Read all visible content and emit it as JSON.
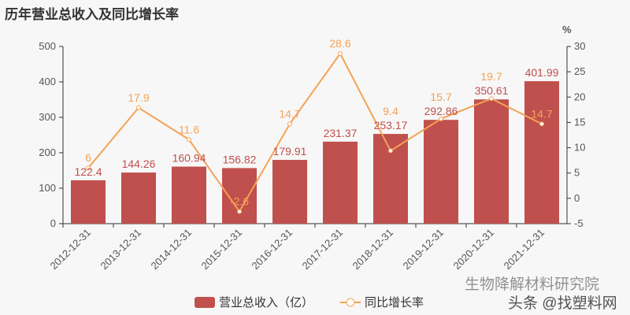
{
  "title": "历年营业总收入及同比增长率",
  "chart_data": {
    "type": "bar+line",
    "title": "历年营业总收入及同比增长率",
    "categories": [
      "2012-12-31",
      "2013-12-31",
      "2014-12-31",
      "2015-12-31",
      "2016-12-31",
      "2017-12-31",
      "2018-12-31",
      "2019-12-31",
      "2020-12-31",
      "2021-12-31"
    ],
    "series": [
      {
        "name": "营业总收入（亿）",
        "type": "bar",
        "axis": "left",
        "color": "#c0504d",
        "values": [
          122.4,
          144.26,
          160.94,
          156.82,
          179.91,
          231.37,
          253.17,
          292.86,
          350.61,
          401.99
        ]
      },
      {
        "name": "同比增长率",
        "type": "line",
        "axis": "right",
        "color": "#f4a255",
        "values": [
          6,
          17.9,
          11.6,
          -2.6,
          14.7,
          28.6,
          9.4,
          15.7,
          19.7,
          14.7
        ]
      }
    ],
    "ylim_left": [
      0,
      500
    ],
    "yticks_left": [
      0,
      100,
      200,
      300,
      400,
      500
    ],
    "ylim_right": [
      -5,
      30
    ],
    "yticks_right": [
      -5,
      0,
      5,
      10,
      15,
      20,
      25,
      30
    ],
    "ylabel_right": "%",
    "legend_position": "bottom-center"
  },
  "watermark": {
    "line1": "生物降解材料研究院",
    "line2": "头条 @找塑料网"
  }
}
